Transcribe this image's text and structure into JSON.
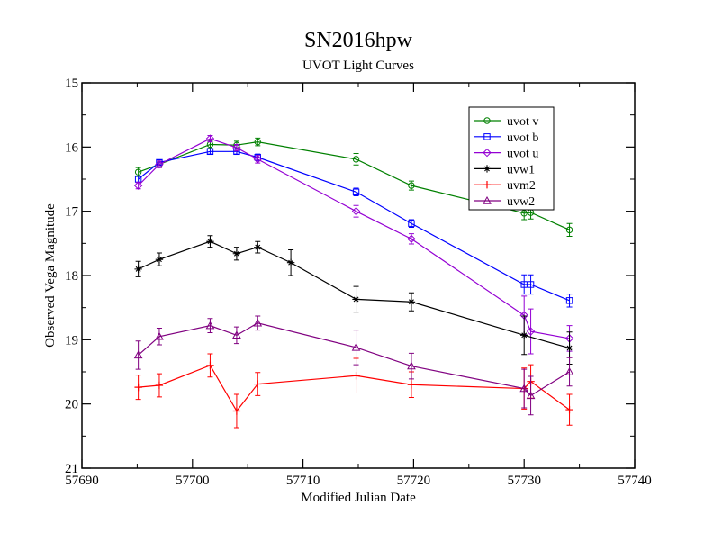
{
  "chart_data": {
    "type": "line",
    "title": "SN2016hpw",
    "subtitle": "UVOT Light Curves",
    "xlabel": "Modified Julian Date",
    "ylabel": "Observed Vega Magnitude",
    "xlim": [
      57690,
      57740
    ],
    "ylim": [
      15,
      21
    ],
    "y_inverted": true,
    "xticks": [
      57690,
      57700,
      57710,
      57720,
      57730,
      57740
    ],
    "xtick_labels": [
      "57690",
      "57700",
      "57710",
      "57720",
      "57730",
      "57740"
    ],
    "yticks": [
      15,
      16,
      17,
      18,
      19,
      20,
      21
    ],
    "ytick_labels": [
      "15",
      "16",
      "17",
      "18",
      "19",
      "20",
      "21"
    ],
    "legend_position": "top-right",
    "grid": false,
    "series": [
      {
        "name": "uvot v",
        "color": "#008000",
        "marker": "circle",
        "x": [
          57695.1,
          57697.0,
          57701.6,
          57704.0,
          57705.9,
          57714.8,
          57719.8,
          57730.0,
          57730.6,
          57734.1
        ],
        "y": [
          16.39,
          16.27,
          15.96,
          15.97,
          15.92,
          16.19,
          16.6,
          17.03,
          17.02,
          17.29
        ],
        "err": [
          0.07,
          0.05,
          0.06,
          0.06,
          0.06,
          0.09,
          0.07,
          0.1,
          0.1,
          0.1
        ]
      },
      {
        "name": "uvot b",
        "color": "#0000ff",
        "marker": "square",
        "x": [
          57695.1,
          57697.0,
          57701.6,
          57704.0,
          57705.9,
          57714.8,
          57719.8,
          57730.0,
          57730.6,
          57734.1
        ],
        "y": [
          16.5,
          16.24,
          16.07,
          16.07,
          16.16,
          16.7,
          17.19,
          18.14,
          18.14,
          18.39
        ],
        "err": [
          0.05,
          0.04,
          0.04,
          0.04,
          0.05,
          0.06,
          0.06,
          0.15,
          0.15,
          0.1
        ]
      },
      {
        "name": "uvot u",
        "color": "#9400d3",
        "marker": "diamond",
        "x": [
          57695.1,
          57697.0,
          57701.6,
          57704.0,
          57705.9,
          57714.8,
          57719.8,
          57730.0,
          57730.6,
          57734.1
        ],
        "y": [
          16.6,
          16.27,
          15.87,
          16.01,
          16.19,
          17.0,
          17.43,
          18.62,
          18.87,
          18.98
        ],
        "err": [
          0.05,
          0.05,
          0.05,
          0.05,
          0.06,
          0.09,
          0.08,
          0.3,
          0.35,
          0.2
        ]
      },
      {
        "name": "uvw1",
        "color": "#000000",
        "marker": "star",
        "x": [
          57695.1,
          57697.0,
          57701.6,
          57704.0,
          57705.9,
          57708.9,
          57714.8,
          57719.8,
          57730.0,
          57734.1
        ],
        "y": [
          17.9,
          17.75,
          17.47,
          17.66,
          17.56,
          17.8,
          18.37,
          18.41,
          18.93,
          19.13
        ],
        "err": [
          0.12,
          0.1,
          0.09,
          0.1,
          0.09,
          0.2,
          0.2,
          0.14,
          0.3,
          0.25
        ]
      },
      {
        "name": "uvm2",
        "color": "#ff0000",
        "marker": "plus",
        "x": [
          57695.1,
          57697.0,
          57701.6,
          57704.0,
          57705.9,
          57714.8,
          57719.8,
          57730.0,
          57730.6,
          57734.1
        ],
        "y": [
          19.74,
          19.71,
          19.4,
          20.11,
          19.69,
          19.56,
          19.7,
          19.76,
          19.65,
          20.09
        ],
        "err": [
          0.19,
          0.18,
          0.18,
          0.26,
          0.18,
          0.27,
          0.2,
          0.32,
          0.26,
          0.24
        ]
      },
      {
        "name": "uvw2",
        "color": "#800080",
        "marker": "triangle",
        "x": [
          57695.1,
          57697.0,
          57701.6,
          57704.0,
          57705.9,
          57714.8,
          57719.8,
          57730.0,
          57730.6,
          57734.1
        ],
        "y": [
          19.24,
          18.95,
          18.78,
          18.93,
          18.74,
          19.12,
          19.41,
          19.76,
          19.87,
          19.5
        ],
        "err": [
          0.22,
          0.13,
          0.11,
          0.13,
          0.11,
          0.27,
          0.2,
          0.3,
          0.3,
          0.22
        ]
      }
    ]
  }
}
